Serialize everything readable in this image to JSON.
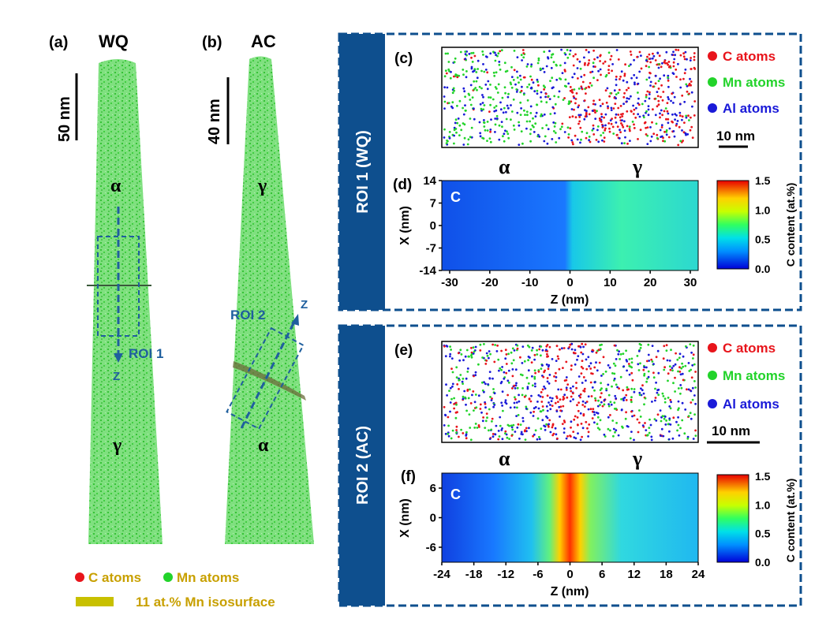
{
  "left": {
    "panel_a": {
      "label": "(a)",
      "title": "WQ",
      "scale": "50 nm",
      "alpha": "α",
      "gamma": "γ",
      "roi": "ROI 1",
      "axis": "Z"
    },
    "panel_b": {
      "label": "(b)",
      "title": "AC",
      "scale": "40 nm",
      "alpha": "α",
      "gamma": "γ",
      "roi": "ROI 2",
      "axis": "Z"
    },
    "legend": {
      "c_atoms": "C atoms",
      "mn_atoms": "Mn atoms",
      "isosurface": "11 at.% Mn isosurface"
    }
  },
  "roi1": {
    "side_title": "ROI 1 (WQ)",
    "panel_c": {
      "label": "(c)",
      "scale": "10 nm",
      "alpha": "α",
      "gamma": "γ",
      "legend": [
        "C atoms",
        "Mn atoms",
        "Al atoms"
      ]
    },
    "panel_d": {
      "label": "(d)",
      "element": "C",
      "xlabel": "Z (nm)",
      "ylabel": "X (nm)",
      "xticks": [
        "-30",
        "-20",
        "-10",
        "0",
        "10",
        "20",
        "30"
      ],
      "yticks": [
        "14",
        "7",
        "0",
        "-7",
        "-14"
      ],
      "cbar_label": "C content (at.%)",
      "cbar_ticks": [
        "1.5",
        "1.0",
        "0.5",
        "0.0"
      ]
    }
  },
  "roi2": {
    "side_title": "ROI 2 (AC)",
    "panel_e": {
      "label": "(e)",
      "scale": "10 nm",
      "alpha": "α",
      "gamma": "γ",
      "legend": [
        "C atoms",
        "Mn atoms",
        "Al atoms"
      ]
    },
    "panel_f": {
      "label": "(f)",
      "element": "C",
      "xlabel": "Z (nm)",
      "ylabel": "X (nm)",
      "xticks": [
        "-24",
        "-18",
        "-12",
        "-6",
        "0",
        "6",
        "12",
        "18",
        "24"
      ],
      "yticks": [
        "6",
        "0",
        "-6"
      ],
      "cbar_label": "C content (at.%)",
      "cbar_ticks": [
        "1.5",
        "1.0",
        "0.5",
        "0.0"
      ]
    }
  },
  "colors": {
    "c_atom": "#e8141b",
    "mn_atom": "#22d32a",
    "al_atom": "#1a1ad8",
    "roi_blue": "#1f5f9e",
    "side_bar": "#0e4f8e",
    "iso": "#c8c000"
  }
}
